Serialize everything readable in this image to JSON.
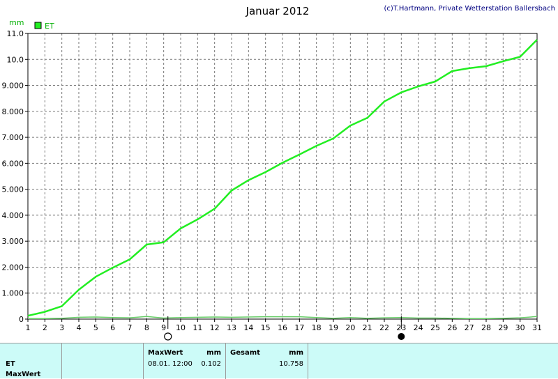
{
  "chart_data": {
    "type": "line",
    "title": "Januar 2012",
    "copyright": "(c)T.Hartmann, Private Wetterstation Ballersbach",
    "unit": "mm",
    "legend": [
      {
        "name": "ET",
        "color": "#22ee22"
      }
    ],
    "xlim": [
      1,
      31
    ],
    "ylim": [
      0,
      11
    ],
    "x_ticks": [
      "1",
      "2",
      "3",
      "4",
      "5",
      "6",
      "7",
      "8",
      "9",
      "10",
      "11",
      "12",
      "13",
      "14",
      "15",
      "16",
      "17",
      "18",
      "19",
      "20",
      "21",
      "22",
      "23",
      "24",
      "25",
      "26",
      "27",
      "28",
      "29",
      "30",
      "31"
    ],
    "y_ticks": [
      "0",
      "1.000",
      "2.000",
      "3.000",
      "4.000",
      "5.000",
      "6.000",
      "7.000",
      "8.000",
      "9.000",
      "10.0",
      "11.0"
    ],
    "moon_phases": [
      {
        "x": 9.25,
        "phase": "full-moon"
      },
      {
        "x": 23.0,
        "phase": "new-moon"
      }
    ],
    "series": [
      {
        "name": "ET",
        "color": "#22ee22",
        "x": [
          1,
          2,
          3,
          4,
          5,
          6,
          7,
          8,
          9,
          10,
          11,
          12,
          13,
          14,
          15,
          16,
          17,
          18,
          19,
          20,
          21,
          22,
          23,
          24,
          25,
          26,
          27,
          28,
          29,
          30,
          31
        ],
        "y": [
          0.13,
          0.28,
          0.5,
          1.13,
          1.63,
          1.98,
          2.3,
          2.87,
          2.96,
          3.49,
          3.84,
          4.25,
          4.95,
          5.35,
          5.66,
          6.02,
          6.34,
          6.67,
          6.96,
          7.45,
          7.75,
          8.38,
          8.73,
          8.96,
          9.15,
          9.55,
          9.66,
          9.74,
          9.93,
          10.1,
          10.758
        ]
      },
      {
        "name": "ET MaxWert",
        "color": "#66cc66",
        "x": [
          1,
          2,
          3,
          4,
          5,
          6,
          7,
          8,
          9,
          10,
          11,
          12,
          13,
          14,
          15,
          16,
          17,
          18,
          19,
          20,
          21,
          22,
          23,
          24,
          25,
          26,
          27,
          28,
          29,
          30,
          31
        ],
        "y": [
          0.02,
          0.02,
          0.03,
          0.07,
          0.08,
          0.06,
          0.05,
          0.1,
          0.04,
          0.06,
          0.07,
          0.08,
          0.07,
          0.08,
          0.09,
          0.09,
          0.09,
          0.06,
          0.03,
          0.06,
          0.03,
          0.05,
          0.06,
          0.04,
          0.04,
          0.03,
          0.02,
          0.02,
          0.03,
          0.05,
          0.1
        ]
      }
    ]
  },
  "footer": {
    "row1_label": "ET",
    "row2_label": "MaxWert",
    "max_header": "MaxWert",
    "max_unit": "mm",
    "max_time": "08.01.  12:00",
    "max_value": "0.102",
    "total_header": "Gesamt",
    "total_unit": "mm",
    "total_value": "10.758"
  }
}
